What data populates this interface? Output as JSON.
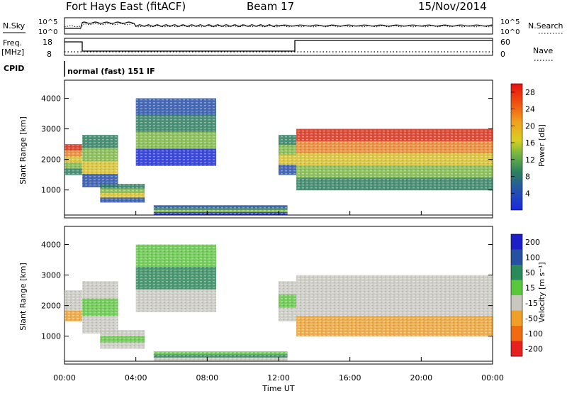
{
  "header": {
    "station": "Fort Hays East (fitACF)",
    "beam": "Beam 17",
    "date": "15/Nov/2014"
  },
  "panels": {
    "nsky_label": "N.Sky",
    "nsky_ticks_left": [
      "10^5",
      "10^0"
    ],
    "nsky_ticks_right": [
      "10^5",
      "10^0"
    ],
    "nsearch_label": "N.Search",
    "freq_label": "Freq.",
    "freq_unit": "[MHz]",
    "freq_ticks": [
      "18",
      "8"
    ],
    "nave_ticks": [
      "60",
      "0"
    ],
    "nave_label": "Nave",
    "cpid_label": "CPID",
    "cpid_text": "normal (fast) 151 IF"
  },
  "chart_data": [
    {
      "type": "heatmap",
      "title": "",
      "ylabel": "Slant Range [km]",
      "yticks": [
        "1000",
        "2000",
        "3000",
        "4000"
      ],
      "ylim": [
        180,
        4500
      ],
      "colorbar_label": "Power [dB]",
      "colorbar_ticks": [
        "4",
        "8",
        "12",
        "16",
        "20",
        "24",
        "28"
      ],
      "colorbar_range": [
        0,
        30
      ],
      "regions_hours_km": [
        {
          "t0": 0.0,
          "t1": 1.0,
          "r0": 1500,
          "r1": 2500,
          "level": "high"
        },
        {
          "t0": 1.0,
          "t1": 3.0,
          "r0": 1100,
          "r1": 2800,
          "level": "mid"
        },
        {
          "t0": 2.0,
          "t1": 4.5,
          "r0": 600,
          "r1": 1200,
          "level": "mid"
        },
        {
          "t0": 4.0,
          "t1": 8.5,
          "r0": 1800,
          "r1": 4000,
          "level": "low"
        },
        {
          "t0": 5.0,
          "t1": 12.5,
          "r0": 200,
          "r1": 500,
          "level": "low"
        },
        {
          "t0": 12.0,
          "t1": 13.0,
          "r0": 1500,
          "r1": 2800,
          "level": "mid"
        },
        {
          "t0": 13.0,
          "t1": 24.0,
          "r0": 1000,
          "r1": 3000,
          "level": "high"
        }
      ]
    },
    {
      "type": "heatmap",
      "title": "",
      "ylabel": "Slant Range [km]",
      "yticks": [
        "1000",
        "2000",
        "3000",
        "4000"
      ],
      "ylim": [
        180,
        4500
      ],
      "colorbar_label": "Velocity [m s⁻¹]",
      "colorbar_ticks": [
        "200",
        "100",
        "50",
        "15",
        "-15",
        "-50",
        "-100",
        "-200"
      ],
      "colorbar_colors": [
        "#1e1ec8",
        "#2850a0",
        "#2a8a5a",
        "#5ac83c",
        "#c8c8c0",
        "#f0a028",
        "#f06a10",
        "#e82020"
      ],
      "colorbar_range": [
        -250,
        250
      ],
      "xlabel": "Time UT",
      "xticks": [
        "00:00",
        "04:00",
        "08:00",
        "12:00",
        "16:00",
        "20:00",
        "00:00"
      ]
    }
  ]
}
